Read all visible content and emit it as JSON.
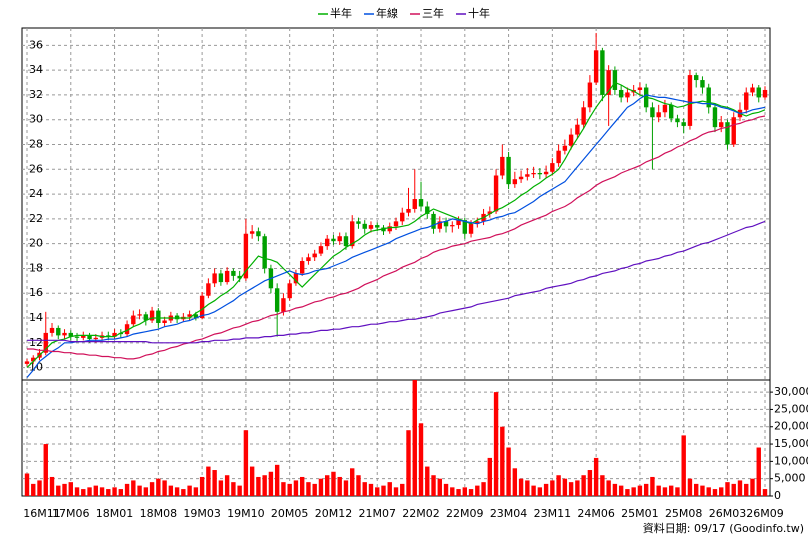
{
  "chart_data": {
    "type": "candlestick",
    "up_color": "#ff0000",
    "down_color": "#00a000",
    "grid": true,
    "source": "資料日期: 09/17 (Goodinfo.tw)",
    "ylim": [
      9,
      37.4
    ],
    "yticks": [
      10,
      12,
      14,
      16,
      18,
      20,
      22,
      24,
      26,
      28,
      30,
      32,
      34,
      36
    ],
    "categories": [
      "16M11",
      null,
      null,
      null,
      null,
      null,
      null,
      "17M06",
      null,
      null,
      null,
      null,
      null,
      null,
      "18M01",
      null,
      null,
      null,
      null,
      null,
      null,
      "18M08",
      null,
      null,
      null,
      null,
      null,
      null,
      "19M03",
      null,
      null,
      null,
      null,
      null,
      null,
      "19M10",
      null,
      null,
      null,
      null,
      null,
      null,
      "20M05",
      null,
      null,
      null,
      null,
      null,
      null,
      "20M12",
      null,
      null,
      null,
      null,
      null,
      null,
      "21M07",
      null,
      null,
      null,
      null,
      null,
      null,
      "22M02",
      null,
      null,
      null,
      null,
      null,
      null,
      "22M09",
      null,
      null,
      null,
      null,
      null,
      null,
      "23M04",
      null,
      null,
      null,
      null,
      null,
      null,
      "23M11",
      null,
      null,
      null,
      null,
      null,
      null,
      "24M06",
      null,
      null,
      null,
      null,
      null,
      null,
      "25M01",
      null,
      null,
      null,
      null,
      null,
      null,
      "25M08",
      null,
      null,
      null,
      null,
      null,
      null,
      "26M03",
      null,
      null,
      null,
      null,
      null,
      "26M09"
    ],
    "open": [
      10.3,
      10.5,
      10.8,
      11.2,
      12.8,
      13.2,
      12.6,
      12.8,
      12.5,
      12.4,
      12.6,
      12.3,
      12.4,
      12.6,
      12.5,
      12.8,
      12.7,
      13.5,
      14.2,
      14.3,
      13.8,
      14.6,
      13.6,
      13.8,
      14.2,
      13.9,
      14.1,
      14.3,
      14.0,
      15.8,
      16.8,
      17.6,
      16.9,
      17.8,
      17.4,
      17.2,
      20.8,
      21.0,
      20.6,
      18.0,
      16.4,
      14.5,
      15.6,
      16.8,
      17.6,
      18.6,
      18.9,
      19.2,
      19.8,
      20.4,
      20.2,
      20.6,
      19.8,
      21.8,
      21.6,
      21.2,
      21.5,
      21.3,
      21.0,
      21.4,
      21.8,
      22.5,
      22.8,
      23.6,
      23.0,
      22.4,
      21.2,
      21.8,
      21.4,
      21.5,
      21.9,
      20.8,
      21.6,
      21.8,
      22.4,
      22.6,
      25.5,
      27.0,
      24.8,
      25.2,
      25.4,
      25.6,
      25.7,
      25.6,
      25.8,
      26.5,
      27.5,
      27.9,
      28.8,
      29.6,
      31.0,
      33.0,
      35.6,
      32.0,
      34.0,
      32.4,
      31.8,
      32.2,
      32.4,
      32.6,
      31.0,
      30.2,
      30.6,
      31.2,
      30.1,
      29.8,
      29.5,
      33.6,
      33.2,
      32.6,
      31.0,
      29.4,
      29.8,
      28.0,
      30.2,
      30.8,
      32.2,
      32.6,
      31.8
    ],
    "high": [
      10.7,
      11.0,
      11.5,
      14.5,
      13.6,
      13.4,
      13.1,
      13.0,
      12.8,
      12.9,
      12.8,
      12.7,
      12.9,
      12.9,
      13.1,
      13.1,
      13.8,
      14.6,
      14.7,
      14.5,
      14.9,
      14.8,
      14.1,
      14.5,
      14.4,
      14.4,
      14.6,
      14.5,
      16.1,
      17.2,
      18.0,
      17.9,
      18.1,
      18.0,
      17.8,
      22.0,
      21.5,
      21.3,
      20.8,
      18.3,
      16.8,
      16.0,
      17.1,
      17.9,
      18.9,
      19.2,
      19.5,
      20.1,
      20.7,
      20.7,
      20.9,
      20.9,
      22.3,
      22.1,
      21.9,
      21.8,
      21.7,
      21.5,
      21.7,
      22.1,
      22.9,
      24.5,
      26.0,
      25.0,
      23.4,
      22.6,
      22.2,
      22.1,
      21.8,
      22.2,
      22.1,
      21.9,
      22.1,
      22.8,
      23.0,
      26.0,
      28.0,
      27.4,
      25.8,
      25.9,
      26.1,
      26.2,
      26.1,
      26.3,
      26.9,
      28.0,
      28.4,
      29.3,
      30.1,
      31.5,
      33.6,
      37.0,
      35.8,
      34.4,
      34.3,
      32.8,
      32.6,
      32.8,
      33.0,
      32.9,
      31.4,
      31.2,
      31.6,
      31.4,
      30.4,
      30.1,
      34.0,
      33.8,
      33.5,
      32.9,
      31.3,
      30.3,
      30.0,
      30.6,
      31.4,
      32.6,
      32.9,
      32.8,
      32.7
    ],
    "low": [
      10.1,
      10.3,
      10.6,
      11.0,
      12.5,
      12.3,
      12.3,
      12.2,
      12.1,
      12.2,
      12.0,
      12.0,
      12.2,
      12.2,
      12.3,
      12.4,
      12.5,
      13.3,
      13.9,
      13.4,
      13.6,
      13.2,
      13.3,
      13.6,
      13.6,
      13.7,
      13.8,
      13.8,
      13.9,
      15.6,
      16.5,
      16.6,
      16.7,
      17.0,
      16.9,
      17.0,
      20.4,
      20.2,
      17.6,
      16.0,
      12.5,
      14.2,
      15.4,
      16.6,
      17.4,
      18.3,
      18.6,
      19.0,
      19.5,
      19.9,
      19.9,
      19.5,
      19.6,
      21.2,
      20.8,
      20.9,
      21.0,
      20.7,
      20.8,
      21.1,
      21.5,
      22.2,
      22.5,
      22.6,
      22.0,
      20.8,
      20.9,
      20.9,
      20.9,
      21.2,
      20.4,
      20.5,
      21.3,
      21.5,
      22.1,
      22.4,
      25.2,
      24.4,
      24.5,
      24.9,
      25.1,
      25.3,
      25.2,
      25.3,
      25.5,
      26.2,
      27.2,
      27.6,
      28.5,
      29.3,
      30.6,
      32.8,
      31.5,
      29.5,
      32.0,
      31.4,
      31.4,
      31.9,
      32.0,
      30.6,
      26.0,
      29.8,
      30.2,
      29.8,
      29.4,
      28.9,
      29.2,
      32.6,
      32.1,
      30.5,
      29.0,
      29.0,
      27.6,
      27.8,
      29.9,
      30.5,
      31.9,
      31.4,
      31.6
    ],
    "close": [
      10.5,
      10.8,
      11.2,
      12.8,
      13.2,
      12.6,
      12.8,
      12.5,
      12.4,
      12.6,
      12.3,
      12.4,
      12.6,
      12.5,
      12.8,
      12.7,
      13.5,
      14.2,
      14.3,
      13.8,
      14.6,
      13.6,
      13.8,
      14.2,
      13.9,
      14.1,
      14.3,
      14.0,
      15.8,
      16.8,
      17.6,
      16.9,
      17.8,
      17.4,
      17.2,
      20.8,
      21.0,
      20.6,
      18.0,
      16.4,
      14.5,
      15.6,
      16.8,
      17.6,
      18.6,
      18.9,
      19.2,
      19.8,
      20.4,
      20.2,
      20.6,
      19.8,
      21.8,
      21.6,
      21.2,
      21.5,
      21.3,
      21.0,
      21.4,
      21.8,
      22.5,
      22.8,
      23.6,
      23.0,
      22.4,
      21.2,
      21.8,
      21.4,
      21.5,
      21.9,
      20.8,
      21.6,
      21.8,
      22.4,
      22.6,
      25.5,
      27.0,
      24.8,
      25.2,
      25.4,
      25.6,
      25.7,
      25.6,
      25.8,
      26.5,
      27.5,
      27.9,
      28.8,
      29.6,
      31.0,
      33.0,
      35.6,
      32.0,
      34.0,
      32.4,
      31.8,
      32.2,
      32.4,
      32.6,
      31.0,
      30.2,
      30.6,
      31.2,
      30.1,
      29.8,
      29.5,
      33.6,
      33.2,
      32.6,
      31.0,
      29.4,
      29.8,
      28.0,
      30.2,
      30.8,
      32.2,
      32.6,
      31.8,
      32.4
    ],
    "series": [
      {
        "name": "半年",
        "color": "#00b000",
        "values": [
          10.0,
          10.5,
          11.0,
          11.5,
          12.0,
          12.2,
          12.3,
          12.5,
          12.6,
          12.6,
          12.6,
          12.6,
          12.5,
          12.5,
          12.5,
          12.8,
          13.0,
          13.3,
          13.5,
          13.8,
          14.0,
          14.0,
          14.0,
          14.0,
          14.0,
          14.0,
          14.0,
          14.4,
          14.7,
          15.1,
          15.4,
          15.8,
          16.1,
          16.5,
          17.1,
          17.8,
          18.4,
          19.0,
          18.8,
          18.7,
          18.5,
          18.0,
          17.5,
          17.0,
          16.5,
          17.0,
          17.5,
          18.0,
          18.5,
          19.0,
          19.3,
          19.7,
          20.0,
          20.3,
          20.7,
          21.0,
          21.1,
          21.2,
          21.3,
          21.3,
          21.4,
          21.5,
          21.8,
          22.2,
          22.5,
          22.8,
          22.6,
          22.4,
          22.2,
          22.0,
          21.8,
          21.6,
          21.9,
          22.1,
          22.4,
          22.7,
          22.9,
          23.2,
          23.5,
          23.9,
          24.2,
          24.6,
          24.9,
          25.3,
          25.6,
          26.0,
          26.8,
          27.7,
          28.5,
          29.3,
          30.2,
          31.0,
          31.7,
          32.3,
          33.0,
          32.8,
          32.5,
          32.3,
          32.0,
          31.8,
          31.7,
          31.5,
          31.3,
          31.2,
          31.0,
          31.1,
          31.3,
          31.4,
          31.5,
          31.4,
          31.3,
          31.1,
          31.0,
          30.8,
          30.5,
          30.3,
          30.5,
          30.6,
          30.8
        ]
      },
      {
        "name": "年線",
        "color": "#0050e0",
        "values": [
          9.2,
          9.8,
          10.5,
          10.9,
          11.3,
          11.6,
          12.0,
          12.0,
          12.1,
          12.1,
          12.2,
          12.2,
          12.2,
          12.3,
          12.3,
          12.4,
          12.5,
          12.7,
          12.8,
          12.9,
          13.0,
          13.1,
          13.3,
          13.4,
          13.5,
          13.7,
          13.8,
          14.0,
          14.2,
          14.3,
          14.5,
          14.8,
          15.1,
          15.4,
          15.8,
          16.1,
          16.4,
          16.7,
          17.0,
          17.2,
          17.4,
          17.6,
          17.8,
          17.6,
          17.5,
          17.6,
          17.8,
          17.9,
          18.0,
          18.2,
          18.4,
          18.6,
          18.9,
          19.1,
          19.3,
          19.5,
          19.7,
          19.9,
          20.1,
          20.4,
          20.6,
          20.8,
          21.0,
          21.2,
          21.3,
          21.5,
          21.7,
          21.8,
          22.0,
          21.9,
          21.8,
          21.7,
          21.6,
          21.8,
          21.9,
          22.1,
          22.2,
          22.4,
          22.5,
          22.8,
          23.1,
          23.4,
          23.8,
          24.1,
          24.4,
          24.7,
          25.0,
          25.6,
          26.2,
          26.8,
          27.4,
          28.0,
          28.6,
          29.2,
          29.8,
          30.4,
          31.0,
          31.3,
          31.7,
          32.0,
          31.9,
          31.8,
          31.8,
          31.7,
          31.6,
          31.5,
          31.4,
          31.4,
          31.3,
          31.3,
          31.2,
          31.0,
          30.9,
          30.7,
          30.5,
          30.6,
          30.8,
          30.9,
          31.0
        ]
      },
      {
        "name": "三年",
        "color": "#d0105a",
        "values": [
          11.5,
          11.5,
          11.4,
          11.4,
          11.3,
          11.3,
          11.2,
          11.2,
          11.1,
          11.1,
          11.0,
          11.0,
          10.9,
          10.9,
          10.8,
          10.8,
          10.7,
          10.7,
          10.8,
          11.0,
          11.1,
          11.3,
          11.4,
          11.6,
          11.7,
          11.9,
          12.0,
          12.2,
          12.3,
          12.5,
          12.7,
          12.8,
          13.0,
          13.2,
          13.3,
          13.5,
          13.7,
          13.8,
          14.0,
          14.2,
          14.3,
          14.5,
          14.6,
          14.8,
          14.9,
          15.1,
          15.3,
          15.4,
          15.6,
          15.7,
          15.9,
          16.0,
          16.2,
          16.4,
          16.7,
          16.9,
          17.1,
          17.4,
          17.6,
          17.8,
          18.1,
          18.3,
          18.5,
          18.8,
          19.0,
          19.3,
          19.5,
          19.6,
          19.8,
          19.9,
          20.0,
          20.2,
          20.3,
          20.4,
          20.5,
          20.7,
          20.8,
          21.0,
          21.2,
          21.5,
          21.7,
          21.9,
          22.1,
          22.3,
          22.6,
          22.8,
          23.0,
          23.3,
          23.7,
          24.0,
          24.3,
          24.7,
          25.0,
          25.2,
          25.4,
          25.7,
          25.9,
          26.1,
          26.3,
          26.6,
          26.8,
          27.0,
          27.3,
          27.5,
          27.8,
          28.0,
          28.3,
          28.5,
          28.8,
          29.0,
          29.1,
          29.3,
          29.4,
          29.6,
          29.7,
          29.9,
          30.0,
          30.2,
          30.3
        ]
      },
      {
        "name": "十年",
        "color": "#6010c0",
        "values": [
          12.2,
          12.2,
          12.2,
          12.2,
          12.2,
          12.2,
          12.2,
          12.1,
          12.1,
          12.1,
          12.1,
          12.1,
          12.1,
          12.1,
          12.1,
          12.1,
          12.1,
          12.1,
          12.1,
          12.1,
          12.0,
          12.0,
          12.0,
          12.0,
          12.0,
          12.0,
          12.0,
          12.0,
          12.1,
          12.1,
          12.2,
          12.2,
          12.2,
          12.3,
          12.3,
          12.4,
          12.4,
          12.4,
          12.5,
          12.5,
          12.6,
          12.6,
          12.7,
          12.7,
          12.8,
          12.8,
          12.9,
          13.0,
          13.0,
          13.1,
          13.1,
          13.2,
          13.3,
          13.3,
          13.4,
          13.5,
          13.5,
          13.6,
          13.7,
          13.7,
          13.8,
          13.9,
          13.9,
          14.0,
          14.1,
          14.2,
          14.4,
          14.5,
          14.6,
          14.7,
          14.8,
          14.9,
          15.1,
          15.2,
          15.3,
          15.4,
          15.5,
          15.6,
          15.8,
          15.9,
          16.0,
          16.1,
          16.2,
          16.4,
          16.5,
          16.6,
          16.7,
          16.8,
          17.0,
          17.1,
          17.3,
          17.4,
          17.6,
          17.7,
          17.8,
          18.0,
          18.1,
          18.3,
          18.4,
          18.6,
          18.7,
          18.8,
          19.0,
          19.1,
          19.3,
          19.4,
          19.6,
          19.8,
          20.0,
          20.1,
          20.3,
          20.5,
          20.7,
          20.9,
          21.1,
          21.3,
          21.4,
          21.6,
          21.8
        ]
      }
    ],
    "volume": {
      "color": "#ff0000",
      "ylim": [
        0,
        33500
      ],
      "yticks": [
        0,
        {
          "value": 5000,
          "label": "5,000"
        },
        {
          "value": 10000,
          "label": "10,000"
        },
        {
          "value": 15000,
          "label": "15,000"
        },
        {
          "value": 20000,
          "label": "20,000"
        },
        {
          "value": 25000,
          "label": "25,000"
        },
        {
          "value": 30000,
          "label": "30,000"
        }
      ],
      "values": [
        6500,
        3500,
        4500,
        15000,
        5500,
        3000,
        3500,
        4000,
        2500,
        2000,
        2500,
        3000,
        2500,
        2000,
        2500,
        2000,
        3500,
        4500,
        3000,
        2500,
        4000,
        5000,
        4500,
        3000,
        2500,
        2000,
        3000,
        2500,
        5500,
        8500,
        7500,
        4500,
        6000,
        4000,
        3000,
        19000,
        8500,
        5500,
        6000,
        7000,
        9000,
        4000,
        3500,
        4500,
        5500,
        4000,
        3500,
        5000,
        6000,
        7000,
        5500,
        4500,
        8000,
        6000,
        4000,
        3500,
        2500,
        3000,
        4000,
        2500,
        3500,
        19000,
        35000,
        21000,
        8500,
        6000,
        5000,
        3500,
        2500,
        2000,
        2500,
        2000,
        3000,
        4000,
        11000,
        30000,
        20000,
        14000,
        8000,
        5000,
        4500,
        3000,
        2500,
        3500,
        4500,
        6000,
        5000,
        4000,
        4500,
        6000,
        7500,
        11000,
        6000,
        4500,
        3500,
        3000,
        2000,
        2500,
        3000,
        3500,
        5500,
        3000,
        2500,
        3000,
        2500,
        17500,
        5000,
        3500,
        3000,
        2500,
        2000,
        2500,
        4000,
        3500,
        4500,
        3500,
        5000,
        14000,
        2000
      ]
    }
  }
}
